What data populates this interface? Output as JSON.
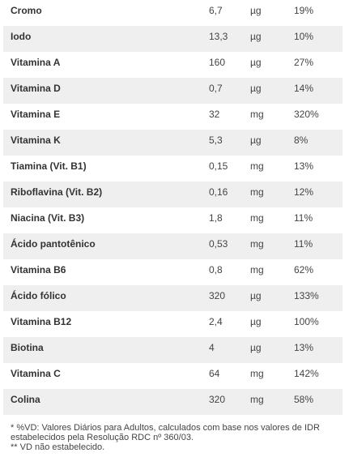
{
  "table": {
    "rows": [
      {
        "name": "Cromo",
        "qty": "6,7",
        "unit": "µg",
        "vd": "19%"
      },
      {
        "name": "Iodo",
        "qty": "13,3",
        "unit": "µg",
        "vd": "10%"
      },
      {
        "name": "Vitamina A",
        "qty": "160",
        "unit": "µg",
        "vd": "27%"
      },
      {
        "name": "Vitamina D",
        "qty": "0,7",
        "unit": "µg",
        "vd": "14%"
      },
      {
        "name": "Vitamina E",
        "qty": "32",
        "unit": "mg",
        "vd": "320%"
      },
      {
        "name": "Vitamina K",
        "qty": "5,3",
        "unit": "µg",
        "vd": "8%"
      },
      {
        "name": "Tiamina (Vit. B1)",
        "qty": "0,15",
        "unit": "mg",
        "vd": "13%"
      },
      {
        "name": "Riboflavina (Vit. B2)",
        "qty": "0,16",
        "unit": "mg",
        "vd": "12%"
      },
      {
        "name": "Niacina (Vit. B3)",
        "qty": "1,8",
        "unit": "mg",
        "vd": "11%"
      },
      {
        "name": "Ácido pantotênico",
        "qty": "0,53",
        "unit": "mg",
        "vd": "11%"
      },
      {
        "name": "Vitamina B6",
        "qty": "0,8",
        "unit": "mg",
        "vd": "62%"
      },
      {
        "name": "Ácido fólico",
        "qty": "320",
        "unit": "µg",
        "vd": "133%"
      },
      {
        "name": "Vitamina B12",
        "qty": "2,4",
        "unit": "µg",
        "vd": "100%"
      },
      {
        "name": "Biotina",
        "qty": "4",
        "unit": "µg",
        "vd": "13%"
      },
      {
        "name": "Vitamina C",
        "qty": "64",
        "unit": "mg",
        "vd": "142%"
      },
      {
        "name": "Colina",
        "qty": "320",
        "unit": "mg",
        "vd": "58%"
      }
    ]
  },
  "footnote": {
    "line1": "* %VD: Valores Diários para Adultos, calculados com base nos valores de IDR estabelecidos pela Resolução RDC nº 360/03.",
    "line2": "** VD não estabelecido."
  },
  "colors": {
    "stripe": "#efefef",
    "text": "#333333"
  }
}
